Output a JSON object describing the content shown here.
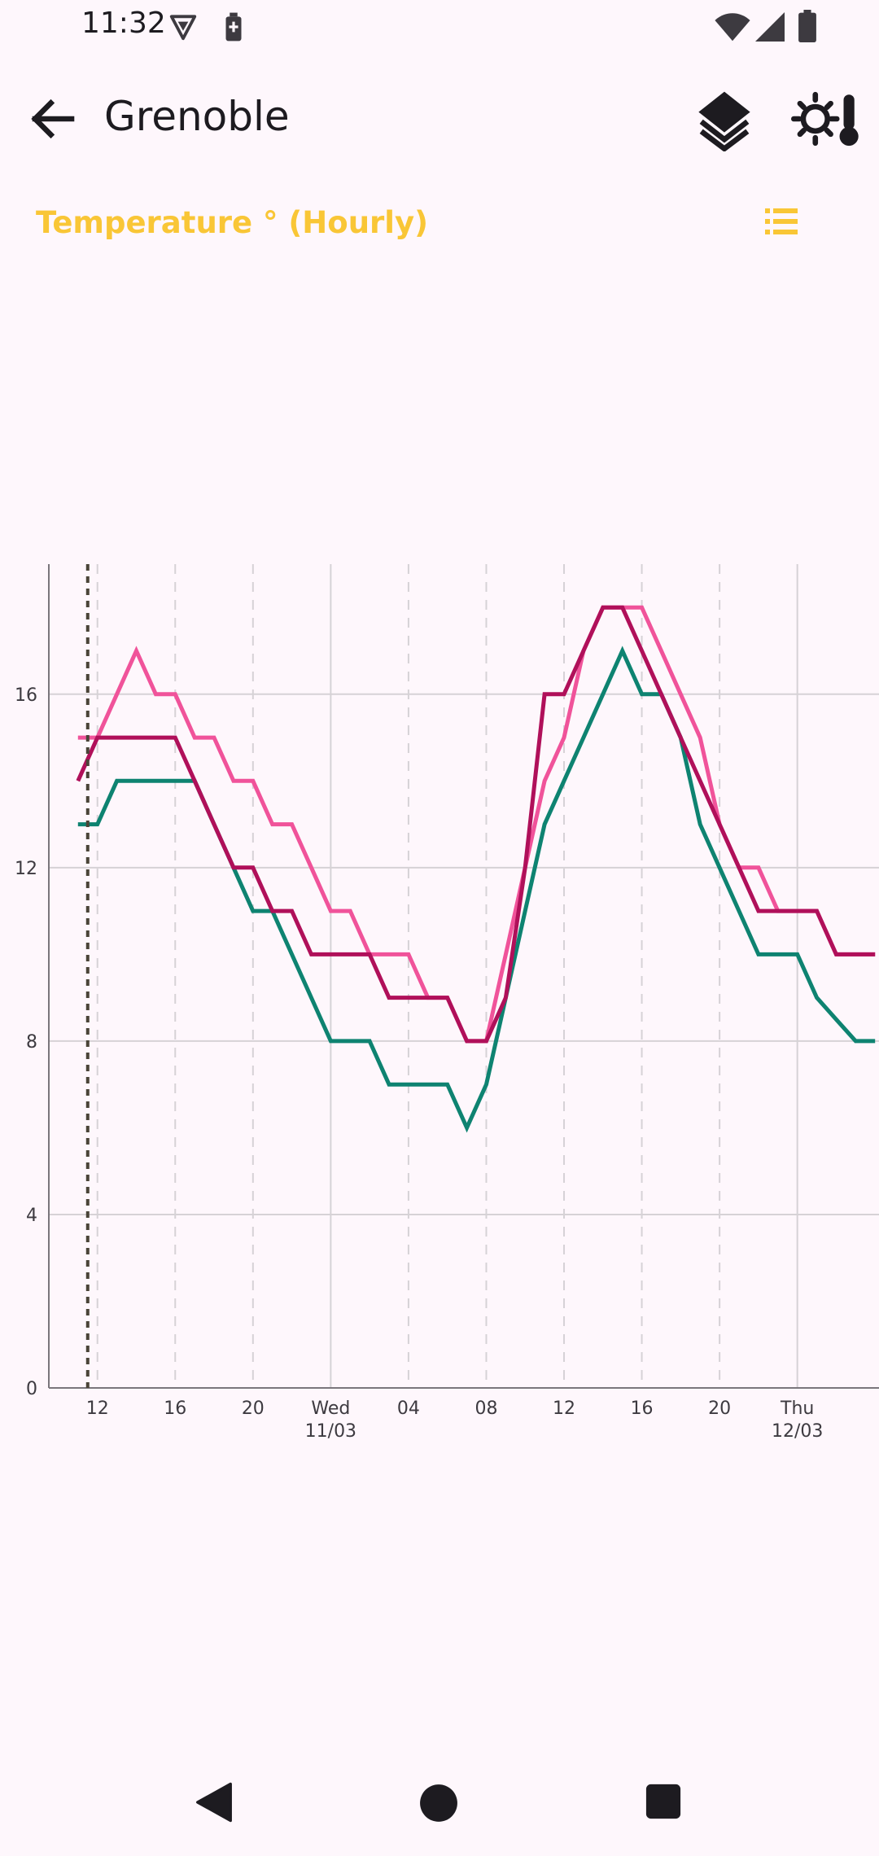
{
  "status_bar": {
    "time": "11:32",
    "icons": [
      "vpn-key-icon",
      "battery-saver-icon",
      "wifi-icon",
      "cellular-signal-icon",
      "battery-icon"
    ]
  },
  "app_bar": {
    "title": "Grenoble",
    "back_icon": "arrow-back-icon",
    "layers_icon": "layers-icon",
    "settings_icon": "brightness-thermometer-icon"
  },
  "chart_header": {
    "title": "Temperature ° (Hourly)",
    "legend_icon": "list-icon"
  },
  "colors": {
    "background": "#FEF7FC",
    "accent": "#F9C636",
    "series_teal": "#0E8371",
    "series_pink": "#F0539A",
    "series_magenta": "#B0105A",
    "now_line": "#4A4438",
    "grid": "#D6D2D6"
  },
  "chart_data": {
    "type": "line",
    "title": "Temperature ° (Hourly)",
    "x_unit": "hour",
    "xlim": [
      9.5,
      52.2
    ],
    "ylim": [
      0,
      19
    ],
    "y_ticks": [
      "0",
      "4",
      "8",
      "12",
      "16"
    ],
    "x_ticks": [
      {
        "x": 12,
        "line1": "12",
        "line2": ""
      },
      {
        "x": 16,
        "line1": "16",
        "line2": ""
      },
      {
        "x": 20,
        "line1": "20",
        "line2": ""
      },
      {
        "x": 24,
        "line1": "Wed",
        "line2": "11/03"
      },
      {
        "x": 28,
        "line1": "04",
        "line2": ""
      },
      {
        "x": 32,
        "line1": "08",
        "line2": ""
      },
      {
        "x": 36,
        "line1": "12",
        "line2": ""
      },
      {
        "x": 40,
        "line1": "16",
        "line2": ""
      },
      {
        "x": 44,
        "line1": "20",
        "line2": ""
      },
      {
        "x": 48,
        "line1": "Thu",
        "line2": "12/03"
      }
    ],
    "now_x": 11.5,
    "series": [
      {
        "color": "#0E8371",
        "points": [
          [
            11,
            13
          ],
          [
            12,
            13
          ],
          [
            13,
            14
          ],
          [
            14,
            14
          ],
          [
            15,
            14
          ],
          [
            16,
            14
          ],
          [
            17,
            14
          ],
          [
            18,
            13
          ],
          [
            19,
            12
          ],
          [
            20,
            11
          ],
          [
            21,
            11
          ],
          [
            22,
            10
          ],
          [
            23,
            9
          ],
          [
            24,
            8
          ],
          [
            25,
            8
          ],
          [
            26,
            8
          ],
          [
            27,
            7
          ],
          [
            28,
            7
          ],
          [
            29,
            7
          ],
          [
            30,
            7
          ],
          [
            31,
            6
          ],
          [
            32,
            7
          ],
          [
            33,
            9
          ],
          [
            34,
            11
          ],
          [
            35,
            13
          ],
          [
            36,
            14
          ],
          [
            37,
            15
          ],
          [
            38,
            16
          ],
          [
            39,
            17
          ],
          [
            40,
            16
          ],
          [
            41,
            16
          ],
          [
            42,
            15
          ],
          [
            43,
            13
          ],
          [
            44,
            12
          ],
          [
            45,
            11
          ],
          [
            46,
            10
          ],
          [
            47,
            10
          ],
          [
            48,
            10
          ],
          [
            49,
            9
          ],
          [
            50,
            8.5
          ],
          [
            51,
            8
          ],
          [
            52,
            8
          ]
        ]
      },
      {
        "color": "#F0539A",
        "points": [
          [
            11,
            15
          ],
          [
            12,
            15
          ],
          [
            13,
            16
          ],
          [
            14,
            17
          ],
          [
            15,
            16
          ],
          [
            16,
            16
          ],
          [
            17,
            15
          ],
          [
            18,
            15
          ],
          [
            19,
            14
          ],
          [
            20,
            14
          ],
          [
            21,
            13
          ],
          [
            22,
            13
          ],
          [
            23,
            12
          ],
          [
            24,
            11
          ],
          [
            25,
            11
          ],
          [
            26,
            10
          ],
          [
            27,
            10
          ],
          [
            28,
            10
          ],
          [
            29,
            9
          ],
          [
            30,
            9
          ],
          [
            31,
            8
          ],
          [
            32,
            8
          ],
          [
            33,
            10
          ],
          [
            34,
            12
          ],
          [
            35,
            14
          ],
          [
            36,
            15
          ],
          [
            37,
            17
          ],
          [
            38,
            18
          ],
          [
            39,
            18
          ],
          [
            40,
            18
          ],
          [
            41,
            17
          ],
          [
            42,
            16
          ],
          [
            43,
            15
          ],
          [
            44,
            13
          ],
          [
            45,
            12
          ],
          [
            46,
            12
          ],
          [
            47,
            11
          ],
          [
            48,
            11
          ],
          [
            49,
            11
          ],
          [
            50,
            10
          ],
          [
            51,
            10
          ],
          [
            52,
            10
          ]
        ]
      },
      {
        "color": "#B0105A",
        "points": [
          [
            11,
            14
          ],
          [
            12,
            15
          ],
          [
            13,
            15
          ],
          [
            14,
            15
          ],
          [
            15,
            15
          ],
          [
            16,
            15
          ],
          [
            17,
            14
          ],
          [
            18,
            13
          ],
          [
            19,
            12
          ],
          [
            20,
            12
          ],
          [
            21,
            11
          ],
          [
            22,
            11
          ],
          [
            23,
            10
          ],
          [
            24,
            10
          ],
          [
            25,
            10
          ],
          [
            26,
            10
          ],
          [
            27,
            9
          ],
          [
            28,
            9
          ],
          [
            29,
            9
          ],
          [
            30,
            9
          ],
          [
            31,
            8
          ],
          [
            32,
            8
          ],
          [
            33,
            9
          ],
          [
            34,
            12
          ],
          [
            35,
            16
          ],
          [
            36,
            16
          ],
          [
            37,
            17
          ],
          [
            38,
            18
          ],
          [
            39,
            18
          ],
          [
            40,
            17
          ],
          [
            41,
            16
          ],
          [
            42,
            15
          ],
          [
            43,
            14
          ],
          [
            44,
            13
          ],
          [
            45,
            12
          ],
          [
            46,
            11
          ],
          [
            47,
            11
          ],
          [
            48,
            11
          ],
          [
            49,
            11
          ],
          [
            50,
            10
          ],
          [
            51,
            10
          ],
          [
            52,
            10
          ]
        ]
      }
    ]
  },
  "nav_bar": {
    "back": "nav-back-icon",
    "home": "nav-home-icon",
    "recents": "nav-recents-icon"
  }
}
